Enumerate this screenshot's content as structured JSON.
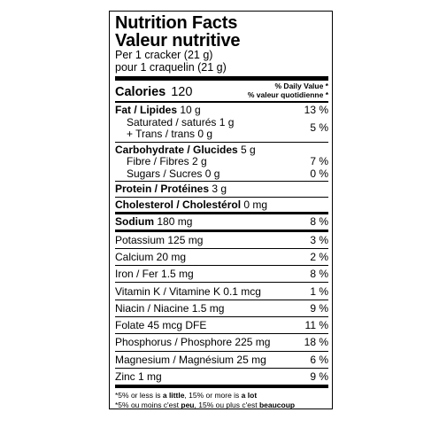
{
  "title_en": "Nutrition Facts",
  "title_fr": "Valeur nutritive",
  "serving_en": "Per 1 cracker (21 g)",
  "serving_fr": "pour 1 craquelin (21 g)",
  "calories_label": "Calories",
  "calories_value": "120",
  "dv_header_en": "% Daily Value *",
  "dv_header_fr": "% valeur quotidienne *",
  "fat": {
    "label": "Fat / Lipides",
    "amount": "10 g",
    "dv": "13 %"
  },
  "saturated": {
    "label": "Saturated / saturés 1 g"
  },
  "trans": {
    "label": "+ Trans / trans 0 g",
    "dv": "5 %"
  },
  "carb": {
    "label": "Carbohydrate / Glucides",
    "amount": "5 g"
  },
  "fibre": {
    "label": "Fibre / Fibres 2 g",
    "dv": "7 %"
  },
  "sugars": {
    "label": "Sugars / Sucres 0 g",
    "dv": "0 %"
  },
  "protein": {
    "label": "Protein / Protéines",
    "amount": "3 g"
  },
  "cholesterol": {
    "label": "Cholesterol / Cholestérol",
    "amount": "0 mg"
  },
  "sodium": {
    "label": "Sodium",
    "amount": "180 mg",
    "dv": "8 %"
  },
  "vitamins": [
    {
      "label": "Potassium 125 mg",
      "dv": "3 %"
    },
    {
      "label": "Calcium 20 mg",
      "dv": "2 %"
    },
    {
      "label": "Iron / Fer 1.5 mg",
      "dv": "8 %"
    },
    {
      "label": "Vitamin K / Vitamine K 0.1 mcg",
      "dv": "1 %"
    },
    {
      "label": "Niacin / Niacine 1.5 mg",
      "dv": "9 %"
    },
    {
      "label": "Folate 45 mcg DFE",
      "dv": "11 %"
    },
    {
      "label": "Phosphorus / Phosphore 225 mg",
      "dv": "18 %"
    },
    {
      "label": "Magnesium / Magnésium 25 mg",
      "dv": "6 %"
    },
    {
      "label": "Zinc 1 mg",
      "dv": "9 %"
    }
  ],
  "footnote_en": {
    "a": "*5% or less is ",
    "b": "a little",
    "c": ", 15% or more is ",
    "d": "a lot"
  },
  "footnote_fr": {
    "a": "*5% ou moins c'est ",
    "b": "peu",
    "c": ", 15% ou plus c'est ",
    "d": "beaucoup"
  }
}
